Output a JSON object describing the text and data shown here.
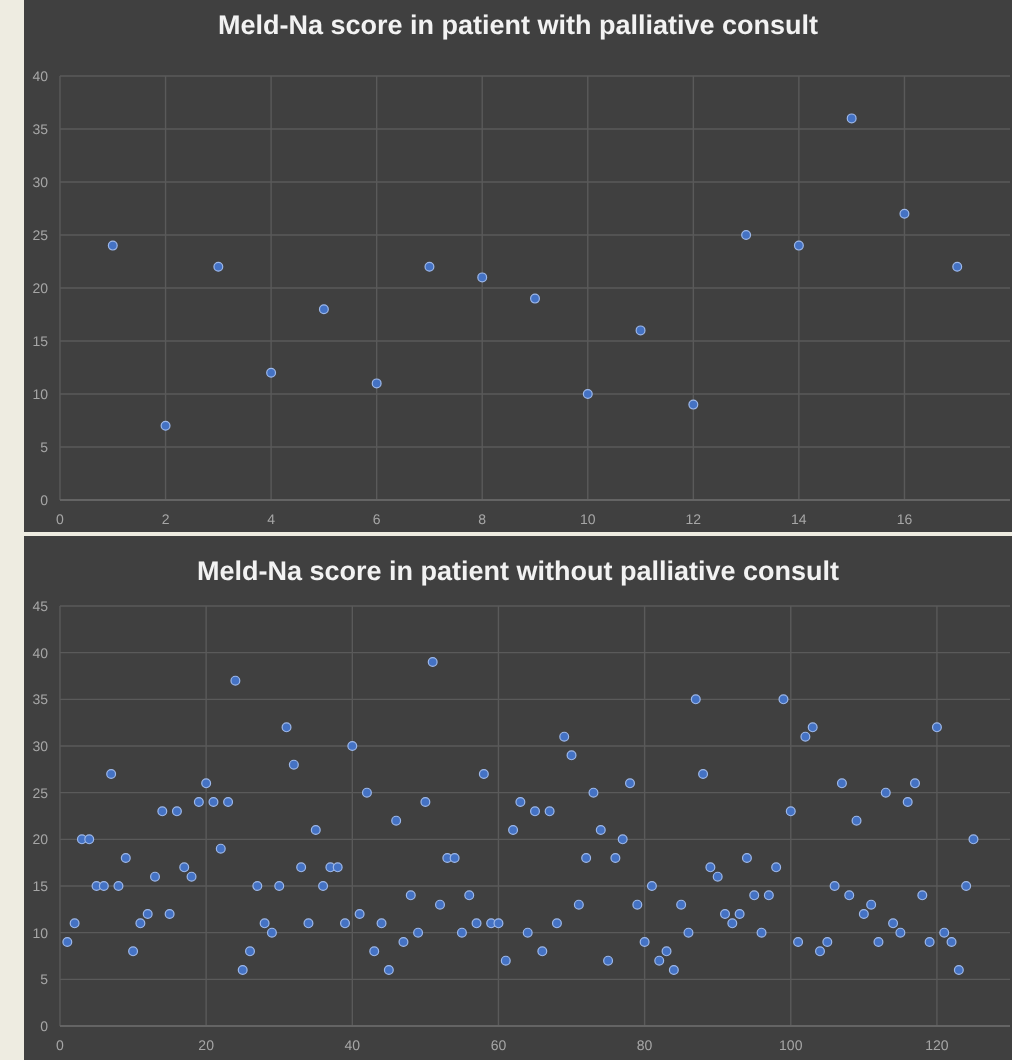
{
  "chart_data": [
    {
      "type": "scatter",
      "title": "Meld-Na score in patient with palliative consult",
      "color": "#4472c4",
      "marker": "circle",
      "grid": true,
      "x": [
        1,
        2,
        3,
        4,
        5,
        6,
        7,
        8,
        9,
        10,
        11,
        12,
        13,
        14,
        15,
        16,
        17
      ],
      "values": [
        24,
        7,
        22,
        12,
        18,
        11,
        22,
        21,
        19,
        10,
        16,
        9,
        25,
        24,
        36,
        27,
        22
      ],
      "xlim": [
        0,
        18
      ],
      "xticks": [
        0,
        2,
        4,
        6,
        8,
        10,
        12,
        14,
        16
      ],
      "ylim": [
        0,
        40
      ],
      "yticks": [
        0,
        5,
        10,
        15,
        20,
        25,
        30,
        35,
        40
      ]
    },
    {
      "type": "scatter",
      "title": "Meld-Na score in patient without palliative consult",
      "color": "#4472c4",
      "marker": "circle",
      "grid": true,
      "x": [
        1,
        2,
        3,
        4,
        5,
        6,
        7,
        8,
        9,
        10,
        11,
        12,
        13,
        14,
        15,
        16,
        17,
        18,
        19,
        20,
        21,
        22,
        23,
        24,
        25,
        26,
        27,
        28,
        29,
        30,
        31,
        32,
        33,
        34,
        35,
        36,
        37,
        38,
        39,
        40,
        41,
        42,
        43,
        44,
        45,
        46,
        47,
        48,
        49,
        50,
        51,
        52,
        53,
        54,
        55,
        56,
        57,
        58,
        59,
        60,
        61,
        62,
        63,
        64,
        65,
        66,
        67,
        68,
        69,
        70,
        71,
        72,
        73,
        74,
        75,
        76,
        77,
        78,
        79,
        80,
        81,
        82,
        83,
        84,
        85,
        86,
        87,
        88,
        89,
        90,
        91,
        92,
        93,
        94,
        95,
        96,
        97,
        98,
        99,
        100,
        101,
        102,
        103,
        104,
        105,
        106,
        107,
        108,
        109,
        110,
        111,
        112,
        113,
        114,
        115,
        116,
        117,
        118,
        119,
        120,
        121,
        122,
        123,
        124,
        125
      ],
      "values": [
        9,
        11,
        20,
        20,
        15,
        15,
        27,
        15,
        18,
        8,
        11,
        12,
        16,
        23,
        12,
        23,
        17,
        16,
        24,
        26,
        24,
        19,
        24,
        37,
        6,
        8,
        15,
        11,
        10,
        15,
        32,
        28,
        17,
        11,
        21,
        15,
        17,
        17,
        11,
        30,
        12,
        25,
        8,
        11,
        6,
        22,
        9,
        14,
        10,
        24,
        39,
        13,
        18,
        18,
        10,
        14,
        11,
        27,
        11,
        11,
        7,
        21,
        24,
        10,
        23,
        8,
        23,
        11,
        31,
        29,
        13,
        18,
        25,
        21,
        7,
        18,
        20,
        26,
        13,
        9,
        15,
        7,
        8,
        6,
        13,
        10,
        35,
        27,
        17,
        16,
        12,
        11,
        12,
        18,
        14,
        10,
        14,
        17,
        35,
        23,
        9,
        31,
        32,
        8,
        9,
        15,
        26,
        14,
        22,
        12,
        13,
        9,
        25,
        11,
        10,
        24,
        26,
        14,
        9,
        32,
        10,
        9,
        6,
        15,
        20
      ],
      "xlim": [
        0,
        130
      ],
      "xticks": [
        0,
        20,
        40,
        60,
        80,
        100,
        120
      ],
      "ylim": [
        0,
        45
      ],
      "yticks": [
        0,
        5,
        10,
        15,
        20,
        25,
        30,
        35,
        40,
        45
      ]
    }
  ]
}
